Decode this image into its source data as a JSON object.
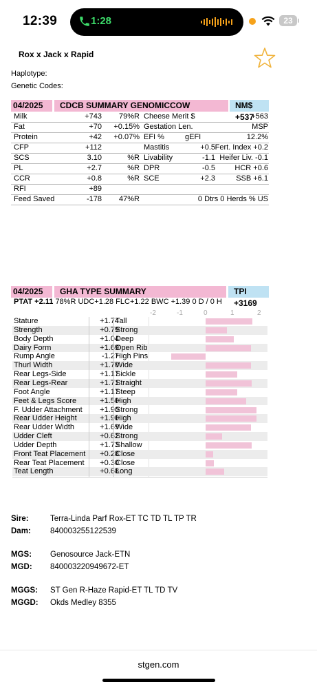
{
  "status": {
    "time": "12:39",
    "call_time": "1:28",
    "battery": "23"
  },
  "bull": {
    "name": "Rox x Jack x Rapid",
    "haplotype_label": "Haplotype:",
    "genetic_codes_label": "Genetic Codes:"
  },
  "genomic": {
    "date": "04/2025",
    "title": "CDCB SUMMARY GENOMICCOW",
    "badge": "NM$ +537",
    "rows": [
      [
        "Milk",
        "+743",
        "79%R",
        "Cheese Merit $",
        "",
        "+563"
      ],
      [
        "Fat",
        "+70",
        "+0.15%",
        "Gestation Len.",
        "",
        "MSP"
      ],
      [
        "Protein",
        "+42",
        "+0.07%",
        "EFI  %",
        "gEFI",
        "12.2%"
      ],
      [
        "CFP",
        "+112",
        "",
        "Mastitis",
        "+0.5",
        "Fert. Index  +0.2"
      ],
      [
        "SCS",
        "3.10",
        "%R",
        "Livability",
        "-1.1",
        "Heifer Liv.  -0.1"
      ],
      [
        "PL",
        "+2.7",
        "%R",
        "DPR",
        "-0.5",
        "HCR  +0.6"
      ],
      [
        "CCR",
        "+0.8",
        "%R",
        "SCE",
        "+2.3",
        "SSB  +6.1"
      ],
      [
        "RFI",
        "+89",
        "",
        "",
        "",
        ""
      ],
      [
        "Feed Saved",
        "-178",
        "47%R",
        "",
        "",
        "0 Dtrs  0 Herds  % US"
      ]
    ]
  },
  "type": {
    "date": "04/2025",
    "title": "GHA TYPE SUMMARY",
    "badge": "TPI +3169",
    "ptat": "PTAT +2.11",
    "ptat_rest": "78%R  UDC+1.28  FLC+1.22  BWC +1.39  0 D /  0 H",
    "scale": [
      "-2",
      "-1",
      "0",
      "1",
      "2"
    ],
    "traits": [
      {
        "name": "Stature",
        "value": "+1.74",
        "desc": "Tall",
        "num": 1.74
      },
      {
        "name": "Strength",
        "value": "+0.79",
        "desc": "Strong",
        "num": 0.79
      },
      {
        "name": "Body Depth",
        "value": "+1.04",
        "desc": "Deep",
        "num": 1.04
      },
      {
        "name": "Dairy Form",
        "value": "+1.69",
        "desc": "Open Rib",
        "num": 1.69
      },
      {
        "name": "Rump Angle",
        "value": "-1.27",
        "desc": "High Pins",
        "num": -1.27
      },
      {
        "name": "Thurl Width",
        "value": "+1.70",
        "desc": "Wide",
        "num": 1.7
      },
      {
        "name": "Rear Legs-Side",
        "value": "+1.17",
        "desc": "Sickle",
        "num": 1.17
      },
      {
        "name": "Rear Legs-Rear",
        "value": "+1.71",
        "desc": "Straight",
        "num": 1.71
      },
      {
        "name": "Foot Angle",
        "value": "+1.17",
        "desc": "Steep",
        "num": 1.17
      },
      {
        "name": "Feet & Legs Score",
        "value": "+1.50",
        "desc": "High",
        "num": 1.5
      },
      {
        "name": "F. Udder Attachment",
        "value": "+1.90",
        "desc": "Strong",
        "num": 1.9
      },
      {
        "name": "Rear Udder Height",
        "value": "+1.90",
        "desc": "High",
        "num": 1.9
      },
      {
        "name": "Rear Udder Width",
        "value": "+1.69",
        "desc": "Wide",
        "num": 1.69
      },
      {
        "name": "Udder Cleft",
        "value": "+0.62",
        "desc": "Strong",
        "num": 0.62
      },
      {
        "name": "Udder Depth",
        "value": "+1.73",
        "desc": "Shallow",
        "num": 1.73
      },
      {
        "name": "Front Teat Placement",
        "value": "+0.28",
        "desc": "Close",
        "num": 0.28
      },
      {
        "name": "Rear Teat Placement",
        "value": "+0.30",
        "desc": "Close",
        "num": 0.3
      },
      {
        "name": "Teat Length",
        "value": "+0.68",
        "desc": "Long",
        "num": 0.68
      }
    ]
  },
  "pedigree": [
    {
      "label": "Sire:",
      "value": "Terra-Linda Parf Rox-ET TC TD TL TP TR"
    },
    {
      "label": "Dam:",
      "value": "840003255122539"
    },
    {
      "label": "MGS:",
      "value": "Genosource Jack-ETN"
    },
    {
      "label": "MGD:",
      "value": "840003220949672-ET"
    },
    {
      "label": "MGGS:",
      "value": "ST Gen R-Haze Rapid-ET TL TD TV"
    },
    {
      "label": "MGGD:",
      "value": "Okds Medley 8355"
    }
  ],
  "footer": {
    "url": "stgen.com"
  },
  "colors": {
    "pink": "#f3b8d3",
    "blue": "#bfe2f3",
    "bar": "#f1c3d8",
    "star": "#f0b33c"
  }
}
